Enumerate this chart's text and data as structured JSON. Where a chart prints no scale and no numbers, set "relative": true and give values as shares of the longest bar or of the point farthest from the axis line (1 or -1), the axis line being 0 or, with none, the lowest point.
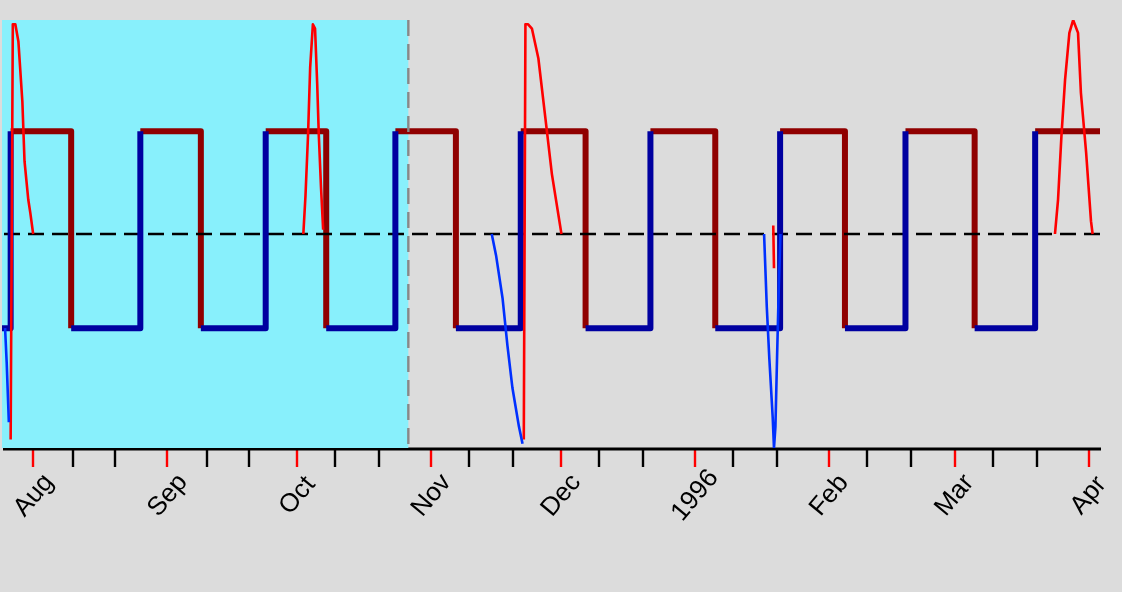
{
  "chart_data": {
    "type": "line",
    "relative": true,
    "xlim": [
      "1995-07-25",
      "1996-04-04"
    ],
    "xticks": [
      {
        "value": "1995-08-01",
        "label": "Aug"
      },
      {
        "value": "1995-08-10",
        "label": null
      },
      {
        "value": "1995-08-20",
        "label": null
      },
      {
        "value": "1995-09-01",
        "label": "Sep"
      },
      {
        "value": "1995-09-10",
        "label": null
      },
      {
        "value": "1995-09-20",
        "label": null
      },
      {
        "value": "1995-10-01",
        "label": "Oct"
      },
      {
        "value": "1995-10-10",
        "label": null
      },
      {
        "value": "1995-10-20",
        "label": null
      },
      {
        "value": "1995-11-01",
        "label": "Nov"
      },
      {
        "value": "1995-11-10",
        "label": null
      },
      {
        "value": "1995-11-20",
        "label": null
      },
      {
        "value": "1995-12-01",
        "label": "Dec"
      },
      {
        "value": "1995-12-10",
        "label": null
      },
      {
        "value": "1995-12-20",
        "label": null
      },
      {
        "value": "1996-01-01",
        "label": "1996"
      },
      {
        "value": "1996-01-10",
        "label": null
      },
      {
        "value": "1996-01-20",
        "label": null
      },
      {
        "value": "1996-02-01",
        "label": "Feb"
      },
      {
        "value": "1996-02-10",
        "label": null
      },
      {
        "value": "1996-02-20",
        "label": null
      },
      {
        "value": "1996-03-01",
        "label": "Mar"
      },
      {
        "value": "1996-03-10",
        "label": null
      },
      {
        "value": "1996-03-20",
        "label": null
      },
      {
        "value": "1996-04-01",
        "label": "Apr"
      }
    ],
    "marker": "none",
    "line_style": "solid",
    "bands": [
      {
        "axis": "x",
        "from": "1995-07-25",
        "to": "1995-10-27",
        "color": "#88f0fc"
      }
    ],
    "ref_lines": [
      {
        "axis": "x",
        "value": "1995-10-27",
        "color": "#888888",
        "line_style": "dashed"
      },
      {
        "axis": "y",
        "value": 0.5,
        "color": "#000000",
        "line_style": "dashed"
      }
    ],
    "series": [
      {
        "color": "#900000",
        "x": [
          "1995-07-27",
          "1995-08-10",
          "1995-08-10",
          null,
          "1995-08-26",
          "1995-09-09",
          "1995-09-09",
          null,
          "1995-09-24",
          "1995-10-08",
          "1995-10-08",
          null,
          "1995-10-24",
          "1995-11-07",
          "1995-11-07",
          null,
          "1995-11-22",
          "1995-12-07",
          "1995-12-07",
          null,
          "1995-12-22",
          "1996-01-06",
          "1996-01-06",
          null,
          "1996-01-21",
          "1996-02-05",
          "1996-02-05",
          null,
          "1996-02-19",
          "1996-03-06",
          "1996-03-06",
          null,
          "1996-03-20",
          "1996-04-04"
        ],
        "values": [
          0.74,
          0.74,
          0.28,
          null,
          0.74,
          0.74,
          0.28,
          null,
          0.74,
          0.74,
          0.28,
          null,
          0.74,
          0.74,
          0.28,
          null,
          0.74,
          0.74,
          0.28,
          null,
          0.74,
          0.74,
          0.28,
          null,
          0.74,
          0.74,
          0.28,
          null,
          0.74,
          0.74,
          0.28,
          null,
          0.74,
          0.74
        ]
      },
      {
        "color": "#0000a0",
        "x": [
          "1995-07-25",
          "1995-07-27",
          "1995-07-27",
          null,
          "1995-08-10",
          "1995-08-26",
          "1995-08-26",
          null,
          "1995-09-09",
          "1995-09-24",
          "1995-09-24",
          null,
          "1995-10-08",
          "1995-10-24",
          "1995-10-24",
          null,
          "1995-11-07",
          "1995-11-22",
          "1995-11-22",
          null,
          "1995-12-07",
          "1995-12-22",
          "1995-12-22",
          null,
          "1996-01-06",
          "1996-01-21",
          "1996-01-21",
          null,
          "1996-02-05",
          "1996-02-19",
          "1996-02-19",
          null,
          "1996-03-06",
          "1996-03-20",
          "1996-03-20"
        ],
        "values": [
          0.28,
          0.28,
          0.74,
          null,
          0.28,
          0.28,
          0.74,
          null,
          0.28,
          0.28,
          0.74,
          null,
          0.28,
          0.28,
          0.74,
          null,
          0.28,
          0.28,
          0.74,
          null,
          0.28,
          0.28,
          0.74,
          null,
          0.28,
          0.28,
          0.74,
          null,
          0.28,
          0.28,
          0.74,
          null,
          0.28,
          0.28,
          0.74
        ]
      },
      {
        "color": "#ff0000",
        "x": [
          "1995-07-27T00:00",
          "1995-07-27T12:00",
          "1995-07-28T02:00",
          "1995-07-28T19:00",
          "1995-07-29T17:00",
          "1995-07-30T05:00",
          "1995-07-31T02:00",
          "1995-07-31T13:00",
          "1995-08-01T05:00",
          null,
          "1995-10-02T17:00",
          "1995-10-03T05:00",
          "1995-10-03T19:00",
          "1995-10-04T07:00",
          "1995-10-04T22:00",
          "1995-10-05T10:00",
          "1995-10-05T22:00",
          "1995-10-06T07:00",
          "1995-10-06T19:00",
          "1995-10-07T07:00",
          null,
          "1995-11-22T17:00",
          "1995-11-23T02:00",
          "1995-11-23T17:00",
          "1995-11-24T14:00",
          "1995-11-26T02:00",
          "1995-11-27T17:00",
          "1995-11-29T05:00",
          "1995-12-01T10:00",
          null,
          "1996-01-19T10:00",
          "1996-01-19T14:00",
          null,
          "1996-03-24T14:00",
          "1996-03-25T07:00",
          "1996-03-26T02:00",
          "1996-03-26T22:00",
          "1996-03-27T22:00",
          "1996-03-28T19:00",
          "1996-03-29T22:00",
          "1996-03-30T14:00",
          "1996-03-31T19:00",
          "1996-04-01T22:00",
          "1996-04-02T07:00"
        ],
        "values": [
          0.02,
          0.99,
          0.99,
          0.95,
          0.81,
          0.67,
          0.58,
          0.55,
          0.5,
          null,
          0.5,
          0.59,
          0.73,
          0.89,
          0.99,
          0.98,
          0.85,
          0.73,
          0.61,
          0.51,
          null,
          0.02,
          0.99,
          0.99,
          0.98,
          0.91,
          0.77,
          0.64,
          0.5,
          null,
          0.52,
          0.42,
          null,
          0.5,
          0.58,
          0.73,
          0.86,
          0.97,
          1,
          0.97,
          0.83,
          0.69,
          0.53,
          0.5
        ]
      },
      {
        "color": "#0030ff",
        "x": [
          "1995-07-25T17:00",
          "1995-07-26T02:00",
          "1995-07-26T14:00",
          null,
          "1995-11-15T07:00",
          "1995-11-16T07:00",
          "1995-11-17T19:00",
          "1995-11-18T22:00",
          "1995-11-20T02:00",
          "1995-11-21T14:00",
          "1995-11-22T10:00",
          null,
          "1996-01-17T07:00",
          "1996-01-17T22:00",
          "1996-01-18T12:00",
          "1996-01-19T07:00",
          "1996-01-19T14:00",
          "1996-01-19T22:00",
          "1996-01-20T07:00",
          "1996-01-20T17:00",
          "1996-01-21T02:00"
        ],
        "values": [
          0.28,
          0.2,
          0.06,
          null,
          0.5,
          0.45,
          0.35,
          0.24,
          0.14,
          0.05,
          0.01,
          null,
          0.5,
          0.33,
          0.21,
          0.07,
          0,
          0.05,
          0.21,
          0.38,
          0.5
        ]
      }
    ]
  }
}
